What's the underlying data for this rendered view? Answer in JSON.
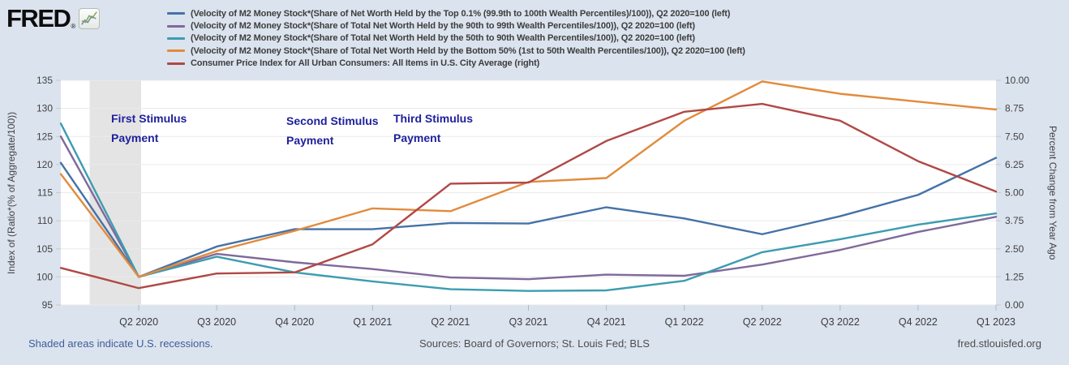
{
  "brand": {
    "logo_text": "FRED",
    "registered_mark": "®",
    "logo_icon": "sparkline-chart-icon"
  },
  "annotations": {
    "first": "First Stimulus Payment",
    "second": "Second Stimulus Payment",
    "third": "Third Stimulus Payment"
  },
  "footer": {
    "recession_note": "Shaded areas indicate U.S. recessions.",
    "sources": "Sources: Board of Governors; St. Louis Fed; BLS",
    "site": "fred.stlouisfed.org"
  },
  "chart_data": {
    "type": "line",
    "x": [
      "Q1 2020",
      "Q2 2020",
      "Q3 2020",
      "Q4 2020",
      "Q1 2021",
      "Q2 2021",
      "Q3 2021",
      "Q4 2021",
      "Q1 2022",
      "Q2 2022",
      "Q3 2022",
      "Q4 2022",
      "Q1 2023"
    ],
    "x_tick_labels": [
      "Q2 2020",
      "Q3 2020",
      "Q4 2020",
      "Q1 2021",
      "Q2 2021",
      "Q3 2021",
      "Q4 2021",
      "Q1 2022",
      "Q2 2022",
      "Q3 2022",
      "Q4 2022",
      "Q1 2023"
    ],
    "left_axis": {
      "title": "Index of (Ratio*(% of Aggregate/100))",
      "min": 95,
      "max": 135,
      "ticks": [
        135,
        130,
        125,
        120,
        115,
        110,
        105,
        100,
        95
      ]
    },
    "right_axis": {
      "title": "Percent Change from Year Ago",
      "min": 0,
      "max": 10,
      "ticks": [
        "10.00",
        "8.75",
        "7.50",
        "6.25",
        "5.00",
        "3.75",
        "2.50",
        "1.25",
        "0.00"
      ]
    },
    "recession_shading": {
      "from_x_index": 0.37,
      "to_x_index": 1.03
    },
    "grid": true,
    "legend_position": "top",
    "series": [
      {
        "name": "(Velocity of M2 Money Stock*(Share of Net Worth Held by the Top 0.1% (99.9th to 100th Wealth Percentiles)/100)), Q2 2020=100 (left)",
        "axis": "left",
        "color": "#4572a7",
        "values": [
          120.3,
          100,
          105.4,
          108.5,
          108.5,
          109.6,
          109.5,
          112.4,
          110.4,
          107.6,
          110.8,
          114.6,
          121.2
        ]
      },
      {
        "name": "(Velocity of M2 Money Stock*(Share of Total Net Worth Held by the 90th to 99th Wealth Percentiles/100)), Q2 2020=100 (left)",
        "axis": "left",
        "color": "#80699b",
        "values": [
          125.0,
          100,
          104.1,
          102.6,
          101.4,
          99.9,
          99.6,
          100.4,
          100.2,
          102.2,
          104.8,
          108.0,
          110.7
        ]
      },
      {
        "name": "(Velocity of M2 Money Stock*(Share of Total Net Worth Held by the 50th to 90th Wealth Percentiles/100)), Q2 2020=100 (left)",
        "axis": "left",
        "color": "#3d9cb0",
        "values": [
          127.3,
          100,
          103.6,
          100.8,
          99.2,
          97.8,
          97.5,
          97.6,
          99.3,
          104.4,
          106.7,
          109.3,
          111.3
        ]
      },
      {
        "name": "(Velocity of M2 Money Stock*(Share of Total Net Worth Held by the Bottom 50% (1st to 50th Wealth Percentiles/100)), Q2 2020=100 (left)",
        "axis": "left",
        "color": "#e18b3d",
        "values": [
          118.3,
          100,
          104.6,
          108.2,
          112.2,
          111.7,
          116.9,
          117.6,
          127.8,
          134.8,
          132.6,
          131.2,
          129.8
        ]
      },
      {
        "name": "Consumer Price Index for All Urban Consumers: All Items in U.S. City Average (right)",
        "axis": "right",
        "color": "#b04845",
        "values": [
          1.65,
          0.75,
          1.4,
          1.45,
          2.7,
          5.4,
          5.45,
          7.3,
          8.6,
          8.95,
          8.2,
          6.4,
          5.05
        ]
      }
    ]
  }
}
